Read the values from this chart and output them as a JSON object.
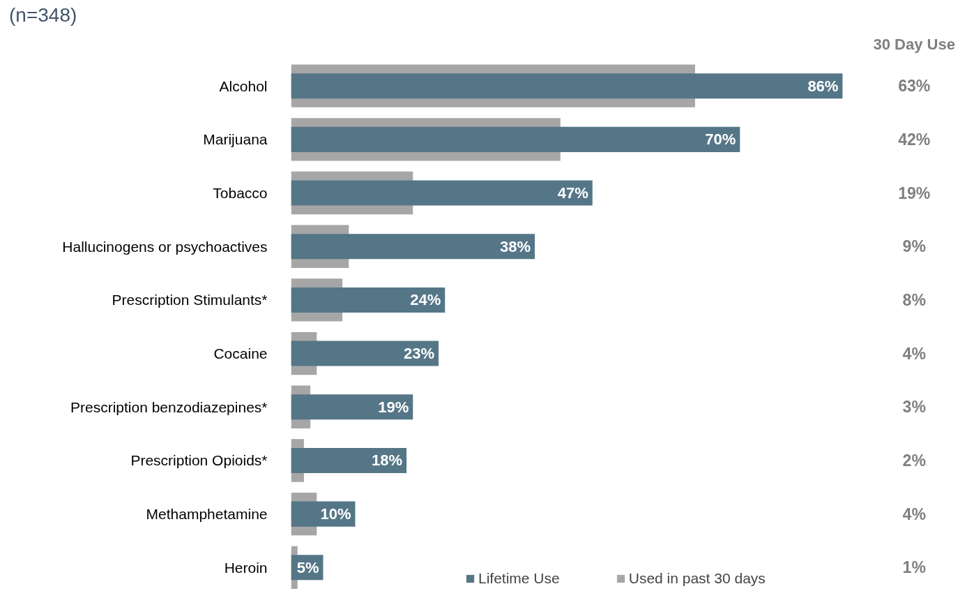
{
  "chart_data": {
    "type": "bar",
    "orientation": "horizontal",
    "subtitle": "(n=348)",
    "categories": [
      "Alcohol",
      "Marijuana",
      "Tobacco",
      "Hallucinogens or psychoactives",
      "Prescription Stimulants*",
      "Cocaine",
      "Prescription benzodiazepines*",
      "Prescription Opioids*",
      "Methamphetamine",
      "Heroin"
    ],
    "series": [
      {
        "name": "Lifetime Use",
        "color": "#557687",
        "values": [
          86,
          70,
          47,
          38,
          24,
          23,
          19,
          18,
          10,
          5
        ],
        "value_labels": [
          "86%",
          "70%",
          "47%",
          "38%",
          "24%",
          "23%",
          "19%",
          "18%",
          "10%",
          "5%"
        ]
      },
      {
        "name": "Used in past 30 days",
        "color": "#a6a6a6",
        "values": [
          63,
          42,
          19,
          9,
          8,
          4,
          3,
          2,
          4,
          1
        ],
        "value_labels": [
          "63%",
          "42%",
          "19%",
          "9%",
          "8%",
          "4%",
          "3%",
          "2%",
          "4%",
          "1%"
        ]
      }
    ],
    "annotations": [
      "30 Day Use"
    ],
    "legend": "bottom right",
    "grid": false,
    "tick_labels": "y"
  }
}
